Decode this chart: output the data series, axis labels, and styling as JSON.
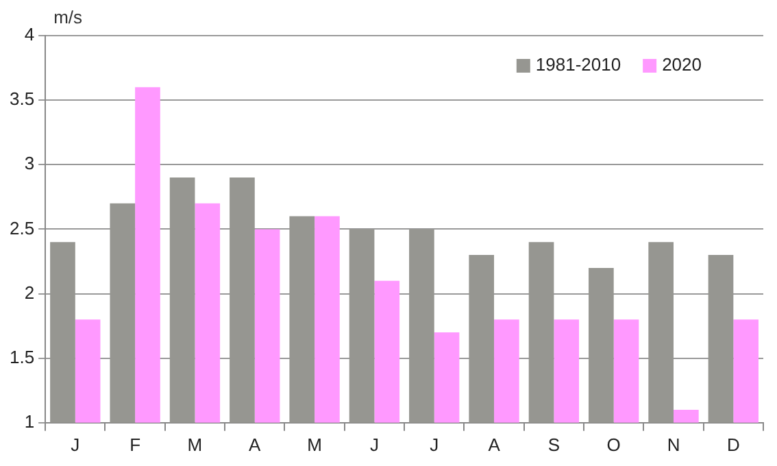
{
  "chart_data": {
    "type": "bar",
    "ylabel": "m/s",
    "categories": [
      "J",
      "F",
      "M",
      "A",
      "M",
      "J",
      "J",
      "A",
      "S",
      "O",
      "N",
      "D"
    ],
    "series": [
      {
        "name": "1981-2010",
        "color": "#969691",
        "values": [
          2.4,
          2.7,
          2.9,
          2.9,
          2.6,
          2.5,
          2.5,
          2.3,
          2.4,
          2.2,
          2.4,
          2.3
        ]
      },
      {
        "name": "2020",
        "color": "#ff99ff",
        "values": [
          1.8,
          3.6,
          2.7,
          2.5,
          2.6,
          2.1,
          1.7,
          1.8,
          1.8,
          1.8,
          1.1,
          1.8
        ]
      }
    ],
    "ylim": [
      1,
      4
    ],
    "yticks": [
      1,
      1.5,
      2,
      2.5,
      3,
      3.5,
      4
    ],
    "grid": "y",
    "legend": "top right"
  }
}
